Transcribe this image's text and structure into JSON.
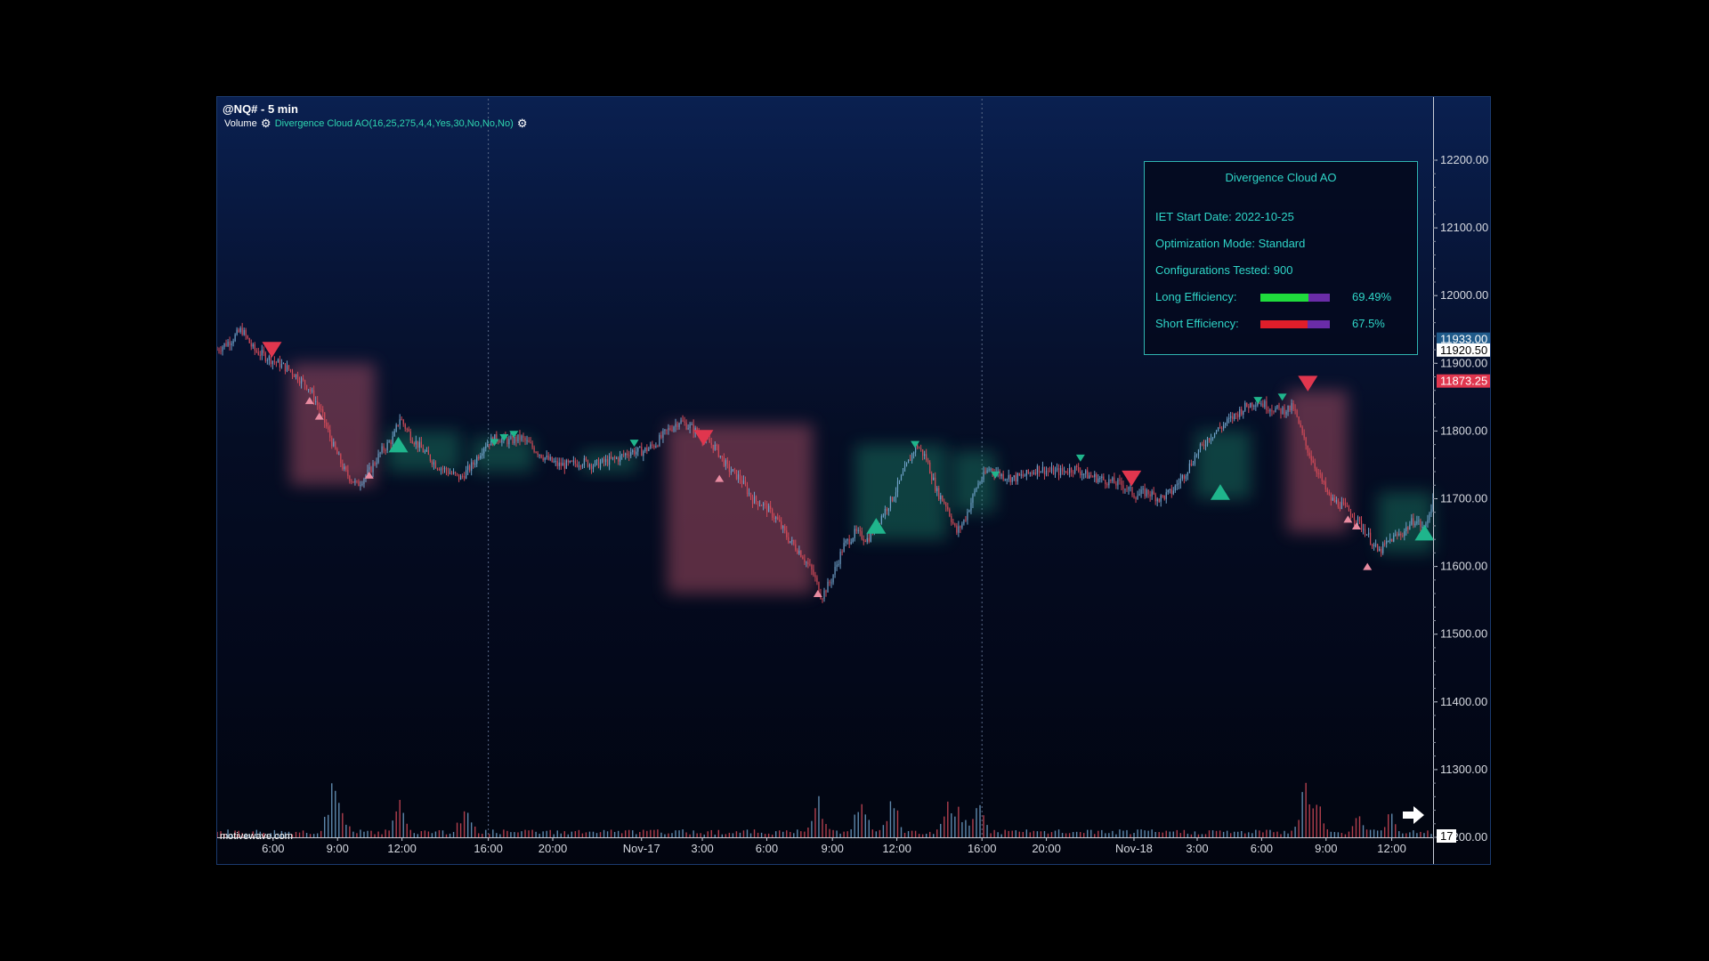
{
  "header": {
    "symbol_title": "@NQ# - 5 min",
    "volume_label": "Volume",
    "study_label": "Divergence Cloud AO(16,25,275,4,4,Yes,30,No,No,No)"
  },
  "info_panel": {
    "title": "Divergence Cloud AO",
    "start_date": "IET Start Date: 2022-10-25",
    "mode": "Optimization Mode: Standard",
    "configs": "Configurations Tested: 900",
    "long_label": "Long Efficiency:",
    "long_pct": "69.49%",
    "long_fraction": 0.6949,
    "short_label": "Short Efficiency:",
    "short_pct": "67.5%",
    "short_fraction": 0.675,
    "long_color": "#1fdc3c",
    "short_color": "#e01e2a",
    "bar_bg_color": "#6a2ca8"
  },
  "watermark": "motivewave.com",
  "colors": {
    "up_candle": "#6fa0c8",
    "down_candle": "#d04a58",
    "bull_signal": "#1fb58c",
    "bear_signal": "#e0364e",
    "bear_cloud": "#c2586e",
    "bull_cloud": "#1c8f6e",
    "last_price_bg": "#e0364e"
  },
  "chart_data": {
    "type": "candlestick",
    "title": "@NQ# - 5 min",
    "ylim": [
      11200,
      12200
    ],
    "y_ticks": [
      "12200.00",
      "12100.00",
      "12000.00",
      "11900.00",
      "11800.00",
      "11700.00",
      "11600.00",
      "11500.00",
      "11400.00",
      "11300.00",
      "11200.00"
    ],
    "price_labels": {
      "upper": "11933.00",
      "current": "11920.50",
      "last": "11873.25",
      "volume": "17"
    },
    "x_ticks": [
      "6:00",
      "9:00",
      "12:00",
      "16:00",
      "20:00",
      "Nov-17",
      "3:00",
      "6:00",
      "9:00",
      "12:00",
      "16:00",
      "20:00",
      "Nov-18",
      "3:00",
      "6:00",
      "9:00",
      "12:00"
    ],
    "x_tick_index": [
      0.046,
      0.099,
      0.152,
      0.223,
      0.276,
      0.349,
      0.399,
      0.452,
      0.506,
      0.559,
      0.629,
      0.682,
      0.754,
      0.806,
      0.859,
      0.912,
      0.966
    ],
    "session_dividers": [
      0.223,
      0.629
    ],
    "price_path": [
      [
        0.0,
        11920
      ],
      [
        0.012,
        11935
      ],
      [
        0.02,
        11950
      ],
      [
        0.03,
        11920
      ],
      [
        0.045,
        11905
      ],
      [
        0.06,
        11890
      ],
      [
        0.075,
        11865
      ],
      [
        0.085,
        11830
      ],
      [
        0.095,
        11780
      ],
      [
        0.105,
        11740
      ],
      [
        0.115,
        11720
      ],
      [
        0.125,
        11740
      ],
      [
        0.135,
        11770
      ],
      [
        0.145,
        11790
      ],
      [
        0.15,
        11820
      ],
      [
        0.16,
        11790
      ],
      [
        0.17,
        11770
      ],
      [
        0.18,
        11750
      ],
      [
        0.19,
        11740
      ],
      [
        0.2,
        11730
      ],
      [
        0.21,
        11750
      ],
      [
        0.22,
        11780
      ],
      [
        0.23,
        11790
      ],
      [
        0.24,
        11785
      ],
      [
        0.25,
        11790
      ],
      [
        0.26,
        11775
      ],
      [
        0.27,
        11760
      ],
      [
        0.28,
        11750
      ],
      [
        0.29,
        11750
      ],
      [
        0.3,
        11755
      ],
      [
        0.31,
        11750
      ],
      [
        0.32,
        11755
      ],
      [
        0.33,
        11760
      ],
      [
        0.34,
        11770
      ],
      [
        0.35,
        11770
      ],
      [
        0.36,
        11780
      ],
      [
        0.37,
        11800
      ],
      [
        0.38,
        11815
      ],
      [
        0.39,
        11805
      ],
      [
        0.4,
        11790
      ],
      [
        0.41,
        11775
      ],
      [
        0.42,
        11745
      ],
      [
        0.43,
        11730
      ],
      [
        0.44,
        11700
      ],
      [
        0.45,
        11690
      ],
      [
        0.46,
        11670
      ],
      [
        0.47,
        11640
      ],
      [
        0.48,
        11620
      ],
      [
        0.49,
        11590
      ],
      [
        0.497,
        11555
      ],
      [
        0.505,
        11580
      ],
      [
        0.515,
        11630
      ],
      [
        0.525,
        11650
      ],
      [
        0.535,
        11640
      ],
      [
        0.545,
        11670
      ],
      [
        0.555,
        11700
      ],
      [
        0.565,
        11740
      ],
      [
        0.575,
        11780
      ],
      [
        0.583,
        11760
      ],
      [
        0.592,
        11710
      ],
      [
        0.6,
        11690
      ],
      [
        0.608,
        11650
      ],
      [
        0.615,
        11670
      ],
      [
        0.625,
        11720
      ],
      [
        0.635,
        11745
      ],
      [
        0.645,
        11735
      ],
      [
        0.655,
        11730
      ],
      [
        0.665,
        11735
      ],
      [
        0.675,
        11745
      ],
      [
        0.685,
        11740
      ],
      [
        0.695,
        11740
      ],
      [
        0.705,
        11745
      ],
      [
        0.715,
        11735
      ],
      [
        0.725,
        11730
      ],
      [
        0.735,
        11725
      ],
      [
        0.745,
        11720
      ],
      [
        0.755,
        11705
      ],
      [
        0.765,
        11710
      ],
      [
        0.775,
        11700
      ],
      [
        0.785,
        11710
      ],
      [
        0.795,
        11735
      ],
      [
        0.805,
        11765
      ],
      [
        0.815,
        11790
      ],
      [
        0.825,
        11805
      ],
      [
        0.835,
        11820
      ],
      [
        0.845,
        11835
      ],
      [
        0.855,
        11845
      ],
      [
        0.865,
        11835
      ],
      [
        0.875,
        11830
      ],
      [
        0.885,
        11835
      ],
      [
        0.895,
        11780
      ],
      [
        0.905,
        11740
      ],
      [
        0.915,
        11700
      ],
      [
        0.925,
        11690
      ],
      [
        0.935,
        11675
      ],
      [
        0.945,
        11650
      ],
      [
        0.955,
        11620
      ],
      [
        0.965,
        11640
      ],
      [
        0.975,
        11650
      ],
      [
        0.985,
        11670
      ],
      [
        0.993,
        11655
      ],
      [
        1.0,
        11700
      ]
    ],
    "bear_signals_large": [
      [
        0.045,
        11920
      ],
      [
        0.4,
        11790
      ],
      [
        0.752,
        11730
      ],
      [
        0.897,
        11870
      ]
    ],
    "bull_signals_large": [
      [
        0.149,
        11780
      ],
      [
        0.542,
        11660
      ],
      [
        0.825,
        11710
      ],
      [
        0.993,
        11650
      ]
    ],
    "bear_signals_small": [
      [
        0.228,
        11783
      ],
      [
        0.236,
        11790
      ],
      [
        0.244,
        11795
      ],
      [
        0.343,
        11782
      ],
      [
        0.574,
        11780
      ],
      [
        0.64,
        11735
      ],
      [
        0.71,
        11760
      ],
      [
        0.856,
        11845
      ],
      [
        0.876,
        11850
      ]
    ],
    "bull_signals_small": [
      [
        0.076,
        11845
      ],
      [
        0.084,
        11822
      ],
      [
        0.125,
        11735
      ],
      [
        0.413,
        11730
      ],
      [
        0.494,
        11560
      ],
      [
        0.93,
        11670
      ],
      [
        0.937,
        11660
      ],
      [
        0.946,
        11600
      ]
    ],
    "bear_clouds": [
      [
        0.06,
        0.13,
        11900,
        11720
      ],
      [
        0.37,
        0.49,
        11810,
        11560
      ],
      [
        0.88,
        0.93,
        11860,
        11650
      ]
    ],
    "bull_clouds": [
      [
        0.14,
        0.2,
        11800,
        11740
      ],
      [
        0.21,
        0.26,
        11790,
        11740
      ],
      [
        0.3,
        0.345,
        11770,
        11740
      ],
      [
        0.525,
        0.6,
        11780,
        11640
      ],
      [
        0.605,
        0.64,
        11770,
        11680
      ],
      [
        0.805,
        0.85,
        11800,
        11700
      ],
      [
        0.955,
        1.0,
        11710,
        11620
      ]
    ],
    "volume_spikes": [
      [
        0.095,
        60
      ],
      [
        0.1,
        50
      ],
      [
        0.15,
        40
      ],
      [
        0.205,
        42
      ],
      [
        0.495,
        52
      ],
      [
        0.53,
        48
      ],
      [
        0.555,
        50
      ],
      [
        0.6,
        45
      ],
      [
        0.61,
        42
      ],
      [
        0.625,
        48
      ],
      [
        0.895,
        65
      ],
      [
        0.905,
        40
      ],
      [
        0.94,
        30
      ],
      [
        0.965,
        28
      ]
    ]
  }
}
